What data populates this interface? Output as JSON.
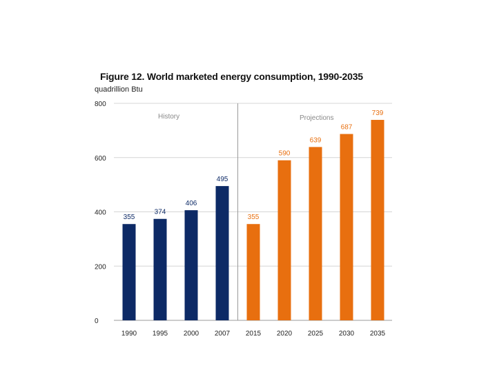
{
  "chart_data": {
    "type": "bar",
    "title": "Figure 12. World marketed energy consumption, 1990-2035",
    "ylabel": "quadrillion Btu",
    "xlabel": "",
    "ylim": [
      0,
      800
    ],
    "yticks": [
      0,
      200,
      400,
      600,
      800
    ],
    "ytick_labels": [
      "0",
      "200",
      "400",
      "600",
      "800"
    ],
    "grid": true,
    "categories": [
      "1990",
      "1995",
      "2000",
      "2007",
      "2015",
      "2020",
      "2025",
      "2030",
      "2035"
    ],
    "values": [
      355,
      374,
      406,
      495,
      355,
      590,
      639,
      687,
      739
    ],
    "value_labels": [
      "355",
      "374",
      "406",
      "495",
      "355",
      "590",
      "639",
      "687",
      "739"
    ],
    "periods": [
      {
        "name": "History",
        "start": 0,
        "end": 3,
        "color": "#0d2a66"
      },
      {
        "name": "Projections",
        "start": 4,
        "end": 8,
        "color": "#e86f0f"
      }
    ]
  }
}
